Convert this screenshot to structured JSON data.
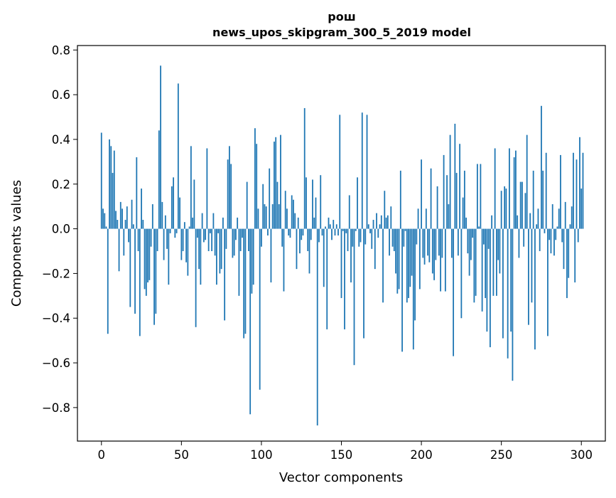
{
  "chart_data": {
    "type": "bar",
    "title": "рош",
    "subtitle": "news_upos_skipgram_300_5_2019 model",
    "xlabel": "Vector components",
    "ylabel": "Components values",
    "xlim": [
      -15,
      315
    ],
    "ylim": [
      -0.95,
      0.82
    ],
    "xticks": [
      0,
      50,
      100,
      150,
      200,
      250,
      300
    ],
    "yticks": [
      -0.8,
      -0.6,
      -0.4,
      -0.2,
      0.0,
      0.2,
      0.4,
      0.6,
      0.8
    ],
    "xtick_labels": [
      "0",
      "50",
      "100",
      "150",
      "200",
      "250",
      "300"
    ],
    "ytick_labels": [
      "−0.8",
      "−0.6",
      "−0.4",
      "−0.2",
      "0.0",
      "0.2",
      "0.4",
      "0.6",
      "0.8"
    ],
    "bar_color": "#1f77b4",
    "grid": false,
    "values": [
      0.43,
      0.09,
      0.07,
      0.01,
      -0.47,
      0.4,
      0.37,
      0.25,
      0.35,
      0.08,
      0.04,
      -0.19,
      0.12,
      0.09,
      -0.12,
      0.04,
      0.1,
      -0.06,
      -0.35,
      0.13,
      0.02,
      -0.38,
      0.32,
      -0.1,
      -0.48,
      0.18,
      0.04,
      -0.27,
      -0.3,
      -0.24,
      -0.23,
      -0.08,
      0.11,
      -0.43,
      -0.38,
      -0.1,
      0.44,
      0.73,
      0.12,
      -0.14,
      0.06,
      -0.09,
      -0.25,
      -0.02,
      0.19,
      0.23,
      -0.04,
      -0.02,
      0.65,
      0.14,
      -0.14,
      -0.1,
      0.03,
      -0.15,
      -0.21,
      0.01,
      0.37,
      0.05,
      0.22,
      -0.44,
      -0.04,
      -0.18,
      -0.25,
      0.07,
      -0.06,
      -0.05,
      0.36,
      -0.1,
      -0.02,
      -0.1,
      0.07,
      -0.12,
      -0.25,
      -0.02,
      -0.2,
      -0.18,
      0.05,
      -0.41,
      -0.09,
      0.31,
      0.37,
      0.29,
      -0.13,
      -0.12,
      -0.05,
      0.05,
      -0.3,
      -0.1,
      -0.04,
      -0.49,
      -0.47,
      0.21,
      -0.1,
      -0.83,
      -0.29,
      -0.25,
      0.45,
      0.38,
      0.09,
      -0.72,
      -0.08,
      0.2,
      0.11,
      0.1,
      -0.03,
      0.27,
      -0.24,
      0.11,
      0.39,
      0.41,
      0.21,
      0.11,
      0.42,
      -0.08,
      -0.28,
      0.17,
      0.09,
      -0.03,
      -0.04,
      0.15,
      0.13,
      0.07,
      -0.18,
      0.05,
      -0.11,
      -0.05,
      -0.03,
      0.54,
      0.23,
      -0.1,
      -0.2,
      -0.05,
      0.22,
      0.05,
      0.14,
      -0.88,
      -0.06,
      0.24,
      -0.03,
      -0.26,
      0.01,
      -0.45,
      0.05,
      0.02,
      -0.05,
      0.04,
      -0.03,
      0.02,
      -0.03,
      0.51,
      -0.31,
      -0.01,
      -0.45,
      -0.02,
      -0.1,
      0.15,
      -0.24,
      -0.08,
      -0.61,
      -0.01,
      0.23,
      -0.08,
      -0.06,
      0.52,
      -0.49,
      -0.07,
      0.51,
      0.02,
      -0.02,
      -0.09,
      0.04,
      -0.18,
      0.07,
      -0.04,
      0.02,
      0.06,
      -0.33,
      0.17,
      0.05,
      0.06,
      -0.12,
      0.1,
      -0.08,
      -0.1,
      -0.2,
      -0.29,
      -0.27,
      0.26,
      -0.55,
      -0.08,
      -0.01,
      -0.33,
      -0.31,
      -0.26,
      -0.21,
      -0.54,
      -0.41,
      -0.07,
      0.09,
      -0.27,
      0.31,
      -0.13,
      -0.16,
      0.09,
      -0.12,
      -0.15,
      0.27,
      -0.2,
      -0.23,
      -0.14,
      0.19,
      -0.12,
      -0.28,
      -0.13,
      0.33,
      -0.28,
      0.24,
      0.11,
      0.42,
      -0.13,
      -0.57,
      0.47,
      0.25,
      -0.12,
      0.38,
      -0.4,
      0.14,
      0.26,
      0.05,
      -0.11,
      -0.21,
      -0.14,
      -0.04,
      -0.33,
      -0.3,
      0.29,
      0.01,
      0.29,
      -0.37,
      -0.07,
      -0.31,
      -0.46,
      -0.09,
      -0.53,
      0.06,
      -0.3,
      0.36,
      -0.3,
      -0.14,
      -0.2,
      0.17,
      -0.49,
      0.19,
      0.18,
      -0.58,
      0.36,
      -0.46,
      -0.68,
      0.32,
      0.35,
      0.06,
      -0.13,
      0.21,
      0.21,
      -0.08,
      0.16,
      0.42,
      -0.43,
      0.07,
      -0.33,
      0.26,
      -0.54,
      0.02,
      0.09,
      -0.1,
      0.55,
      0.26,
      -0.02,
      0.34,
      -0.48,
      -0.05,
      -0.11,
      0.11,
      -0.12,
      -0.05,
      0.01,
      0.09,
      0.33,
      -0.06,
      -0.18,
      0.12,
      -0.31,
      -0.22,
      0.02,
      0.1,
      0.34,
      -0.24,
      0.31,
      -0.06,
      0.41,
      0.18,
      0.34
    ]
  }
}
